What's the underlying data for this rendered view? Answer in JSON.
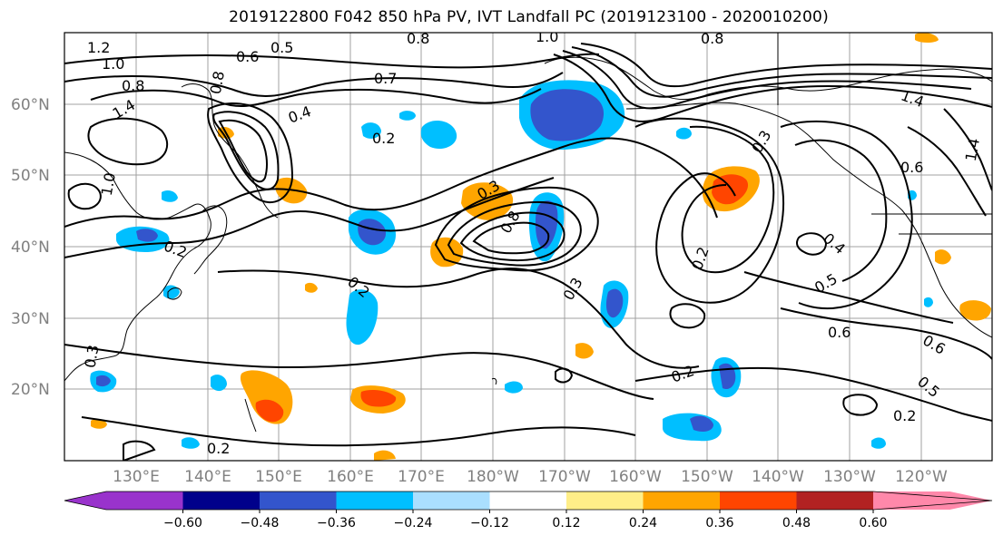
{
  "title": "2019122800 F042 850 hPa PV, IVT Landfall PC (2019123100 - 2020010200)",
  "lat_labels": [
    "60°N",
    "50°N",
    "40°N",
    "30°N",
    "20°N"
  ],
  "lon_labels": [
    "130°E",
    "140°E",
    "150°E",
    "160°E",
    "170°E",
    "180°W",
    "170°W",
    "160°W",
    "150°W",
    "140°W",
    "130°W",
    "120°W"
  ],
  "colorbar": {
    "colors": [
      "#9933cc",
      "#00008b",
      "#3355cc",
      "#00bfff",
      "#aadfff",
      "#ffffff",
      "#ffee88",
      "#ffa500",
      "#ff4500",
      "#b22222",
      "#ff88aa"
    ],
    "tick_labels": [
      "−0.60",
      "−0.48",
      "−0.36",
      "−0.24",
      "−0.12",
      "0.12",
      "0.24",
      "0.36",
      "0.48",
      "0.60"
    ]
  },
  "contour_labels": [
    "1.2",
    "1.0",
    "0.8",
    "1.4",
    "0.6",
    "0.5",
    "0.7",
    "0.8",
    "1.0",
    "0.4",
    "0.2",
    "0.3",
    "0.8",
    "0.8",
    "0.3",
    "1.4",
    "0.6",
    "0.4",
    "0.5",
    "0.6",
    "0.2",
    "0.2",
    "0.3",
    "0.2",
    "0.6",
    "0.5",
    "0.2",
    "0.2",
    "0.3",
    "0.2",
    "1.0",
    "0.8",
    "1.4"
  ]
}
